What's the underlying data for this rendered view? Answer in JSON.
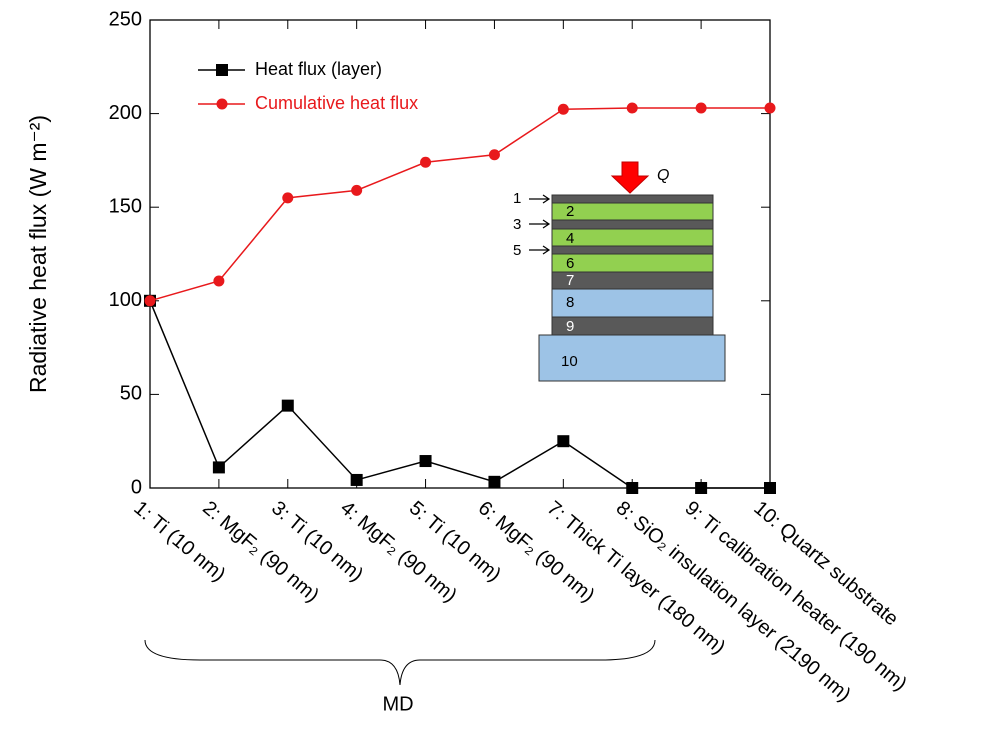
{
  "chart_data": {
    "type": "line",
    "y_label": "Radiative heat flux (W m⁻²)",
    "categories": [
      "1: Ti (10 nm)",
      "2: MgF₂ (90 nm)",
      "3: Ti (10 nm)",
      "4: MgF₂ (90 nm)",
      "5: Ti (10 nm)",
      "6: MgF₂ (90 nm)",
      "7: Thick Ti layer (180 nm)",
      "8: SiO₂ insulation layer (2190 nm)",
      "9: Ti calibration heater (190 nm)",
      "10: Quartz substrate"
    ],
    "series": [
      {
        "name": "Heat flux (layer)",
        "color": "#000000",
        "marker": "square",
        "values": [
          100,
          11,
          44,
          4.3,
          14.4,
          3.3,
          25,
          0,
          0,
          0
        ]
      },
      {
        "name": "Cumulative heat flux",
        "color": "#e8191c",
        "marker": "circle",
        "values": [
          100,
          110.6,
          155,
          159,
          174,
          178,
          202.3,
          203,
          203,
          203
        ]
      }
    ],
    "ylim": [
      0,
      250
    ],
    "yticks": [
      0,
      50,
      100,
      150,
      200,
      250
    ],
    "legend": "upper left",
    "annotations": {
      "bracket": "MD",
      "inset": [
        "1",
        "2",
        "3",
        "4",
        "5",
        "6",
        "7",
        "8",
        "9",
        "10",
        "Q"
      ]
    }
  }
}
